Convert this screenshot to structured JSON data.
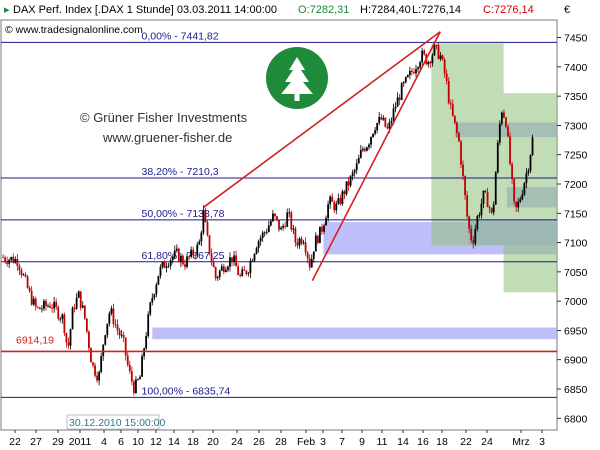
{
  "header": {
    "symbol": "DAX Perf. Index [.DAX  1 Stunde] 03.03.2011 14:00:00",
    "open": "O:7282,31",
    "high": "H:7284,40",
    "low": "L:7276,14",
    "close": "C:7276,14",
    "currency": "€",
    "source": "© www.tradesignalonline.com"
  },
  "watermark": {
    "company": "© Grüner Fisher Investments",
    "url": "www.gruener-fisher.de"
  },
  "colors": {
    "candle_up": "#000000",
    "candle_down": "#c00000",
    "fib_line": "#1a1a8c",
    "trend_line": "#d42020",
    "support_line": "#d42020",
    "zone_blue": "#a8aaf5",
    "zone_green": "#8fbf7a",
    "logo_green": "#1f8a3a"
  },
  "chart_data": {
    "type": "candlestick",
    "title": "DAX Perf. Index [.DAX 1 Stunde]",
    "ylim": [
      6780,
      7480
    ],
    "y_ticks": [
      6800,
      6850,
      6900,
      6950,
      7000,
      7050,
      7100,
      7150,
      7200,
      7250,
      7300,
      7350,
      7400,
      7450
    ],
    "x_ticks": [
      "22",
      "27",
      "29",
      "2011",
      "4",
      "6",
      "10",
      "12",
      "14",
      "18",
      "20",
      "24",
      "26",
      "28",
      "Feb",
      "3",
      "7",
      "9",
      "11",
      "14",
      "16",
      "18",
      "22",
      "24",
      "Mrz",
      "3"
    ],
    "fibonacci_levels": [
      {
        "label": "0,00% - 7441,82",
        "value": 7441.82
      },
      {
        "label": "38,20% - 7210,3",
        "value": 7210.3
      },
      {
        "label": "50,00% - 7138,78",
        "value": 7138.78
      },
      {
        "label": "61,80% - 7067,25",
        "value": 7067.25
      },
      {
        "label": "100,00% - 6835,74",
        "value": 6835.74
      }
    ],
    "support_level": {
      "label": "6914,19",
      "value": 6914.19
    },
    "low_annotation": "30.12.2010 15:00:00",
    "trend_channel": [
      {
        "from": [
          18.2,
          7160
        ],
        "to": [
          39.5,
          7460
        ]
      },
      {
        "from": [
          28.0,
          7035
        ],
        "to": [
          39.5,
          7460
        ]
      }
    ],
    "zones": [
      {
        "type": "blue",
        "x0": 13.6,
        "x1": 50,
        "y0": 6935,
        "y1": 6955
      },
      {
        "type": "blue",
        "x0": 29.0,
        "x1": 50,
        "y0": 7080,
        "y1": 7135
      },
      {
        "type": "blue",
        "x0": 42.0,
        "x1": 50,
        "y0": 7095,
        "y1": 7140
      },
      {
        "type": "blue",
        "x0": 40.8,
        "x1": 50,
        "y0": 7280,
        "y1": 7305
      },
      {
        "type": "blue",
        "x0": 45.5,
        "x1": 50,
        "y0": 7160,
        "y1": 7195
      },
      {
        "type": "green",
        "x0": 38.7,
        "x1": 45.2,
        "y0": 7095,
        "y1": 7440
      },
      {
        "type": "green",
        "x0": 45.2,
        "x1": 50,
        "y0": 7015,
        "y1": 7355
      }
    ],
    "close_path": [
      [
        0,
        7075
      ],
      [
        1.5,
        7070
      ],
      [
        2.6,
        7010
      ],
      [
        3.2,
        6985
      ],
      [
        3.8,
        6990
      ],
      [
        4.5,
        6995
      ],
      [
        5.6,
        6970
      ],
      [
        6.0,
        6915
      ],
      [
        6.5,
        6990
      ],
      [
        7.0,
        7010
      ],
      [
        7.5,
        6975
      ],
      [
        8.2,
        6890
      ],
      [
        8.8,
        6870
      ],
      [
        9.3,
        6945
      ],
      [
        9.8,
        6985
      ],
      [
        10.5,
        6950
      ],
      [
        11.0,
        6930
      ],
      [
        11.5,
        6880
      ],
      [
        12.0,
        6850
      ],
      [
        12.5,
        6870
      ],
      [
        13.0,
        6940
      ],
      [
        13.5,
        7000
      ],
      [
        14.2,
        7050
      ],
      [
        15.0,
        7070
      ],
      [
        15.8,
        7080
      ],
      [
        16.5,
        7065
      ],
      [
        17.2,
        7080
      ],
      [
        17.8,
        7095
      ],
      [
        18.2,
        7150
      ],
      [
        18.6,
        7100
      ],
      [
        19.3,
        7040
      ],
      [
        20.0,
        7060
      ],
      [
        20.8,
        7075
      ],
      [
        21.5,
        7040
      ],
      [
        22.2,
        7055
      ],
      [
        23.0,
        7100
      ],
      [
        23.8,
        7120
      ],
      [
        24.5,
        7145
      ],
      [
        25.2,
        7120
      ],
      [
        25.8,
        7150
      ],
      [
        26.5,
        7100
      ],
      [
        27.2,
        7110
      ],
      [
        27.8,
        7060
      ],
      [
        28.2,
        7100
      ],
      [
        28.8,
        7120
      ],
      [
        29.5,
        7170
      ],
      [
        30.2,
        7160
      ],
      [
        30.8,
        7185
      ],
      [
        31.5,
        7210
      ],
      [
        32.0,
        7230
      ],
      [
        32.5,
        7260
      ],
      [
        33.0,
        7270
      ],
      [
        33.6,
        7300
      ],
      [
        34.2,
        7310
      ],
      [
        34.8,
        7290
      ],
      [
        35.4,
        7330
      ],
      [
        36.0,
        7360
      ],
      [
        36.6,
        7380
      ],
      [
        37.2,
        7400
      ],
      [
        37.8,
        7420
      ],
      [
        38.4,
        7410
      ],
      [
        39.0,
        7430
      ],
      [
        39.5,
        7420
      ],
      [
        40.0,
        7380
      ],
      [
        40.4,
        7330
      ],
      [
        40.8,
        7300
      ],
      [
        41.2,
        7270
      ],
      [
        41.6,
        7200
      ],
      [
        42.0,
        7130
      ],
      [
        42.4,
        7100
      ],
      [
        42.8,
        7140
      ],
      [
        43.4,
        7180
      ],
      [
        43.8,
        7170
      ],
      [
        44.2,
        7140
      ],
      [
        44.6,
        7250
      ],
      [
        45.0,
        7330
      ],
      [
        45.4,
        7310
      ],
      [
        45.8,
        7230
      ],
      [
        46.2,
        7150
      ],
      [
        46.6,
        7170
      ],
      [
        47.0,
        7200
      ],
      [
        47.4,
        7230
      ],
      [
        47.8,
        7276
      ]
    ]
  }
}
